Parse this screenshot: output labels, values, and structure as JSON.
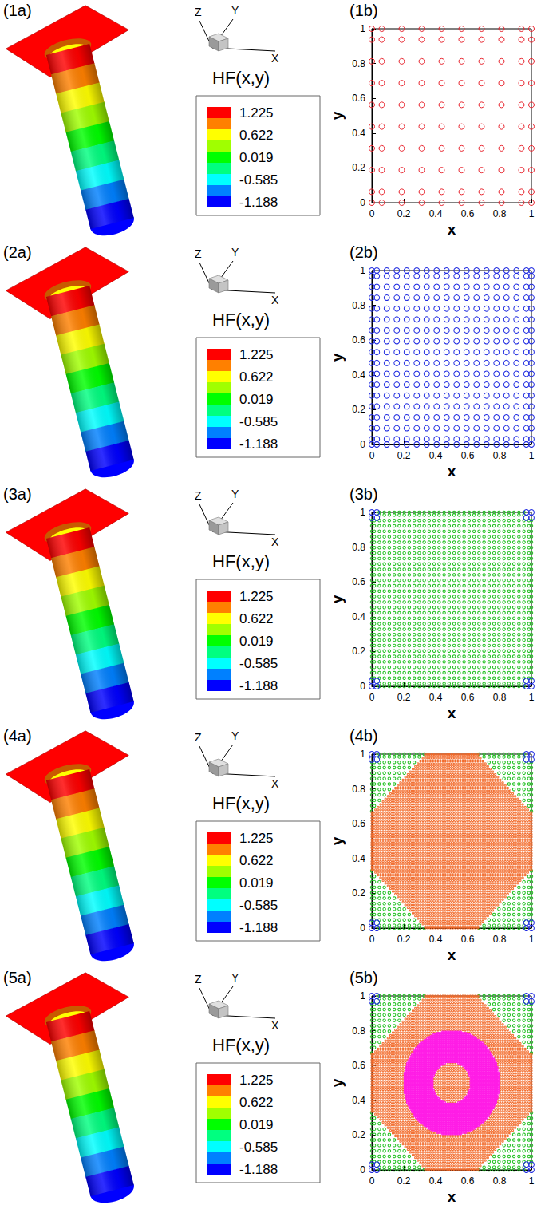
{
  "chart_data": [
    {
      "type": "scatter",
      "panel_label": "(1b)",
      "xlabel": "x",
      "ylabel": "y",
      "xlim": [
        0,
        1
      ],
      "ylim": [
        0,
        1
      ],
      "xticks": [
        0,
        0.2,
        0.4,
        0.6,
        0.8,
        1
      ],
      "yticks": [
        0,
        0.2,
        0.4,
        0.6,
        0.8,
        1
      ],
      "grid": false,
      "series": [
        {
          "color": "#e8202a",
          "marker": "circle",
          "cells_per_side": 8,
          "region": {
            "shape": "square"
          }
        }
      ]
    },
    {
      "type": "scatter",
      "panel_label": "(2b)",
      "xlabel": "x",
      "ylabel": "y",
      "xlim": [
        0,
        1
      ],
      "ylim": [
        0,
        1
      ],
      "xticks": [
        0,
        0.2,
        0.4,
        0.6,
        0.8,
        1
      ],
      "yticks": [
        0,
        0.2,
        0.4,
        0.6,
        0.8,
        1
      ],
      "grid": false,
      "series": [
        {
          "color": "#1f2be0",
          "marker": "circle",
          "cells_per_side": 16,
          "region": {
            "shape": "square"
          }
        }
      ]
    },
    {
      "type": "scatter",
      "panel_label": "(3b)",
      "xlabel": "x",
      "ylabel": "y",
      "xlim": [
        0,
        1
      ],
      "ylim": [
        0,
        1
      ],
      "xticks": [
        0,
        0.2,
        0.4,
        0.6,
        0.8,
        1
      ],
      "yticks": [
        0,
        0.2,
        0.4,
        0.6,
        0.8,
        1
      ],
      "grid": false,
      "series": [
        {
          "color": "#22c022",
          "marker": "circle",
          "cells_per_side": 32,
          "region": {
            "shape": "square"
          }
        },
        {
          "color": "#1f2be0",
          "marker": "circle",
          "cells_per_side": 16,
          "region": {
            "shape": "corners",
            "size": 0.04
          }
        }
      ]
    },
    {
      "type": "scatter",
      "panel_label": "(4b)",
      "xlabel": "x",
      "ylabel": "y",
      "xlim": [
        0,
        1
      ],
      "ylim": [
        0,
        1
      ],
      "xticks": [
        0,
        0.2,
        0.4,
        0.6,
        0.8,
        1
      ],
      "yticks": [
        0,
        0.2,
        0.4,
        0.6,
        0.8,
        1
      ],
      "grid": false,
      "series": [
        {
          "color": "#22c022",
          "marker": "circle",
          "cells_per_side": 32,
          "region": {
            "shape": "square"
          }
        },
        {
          "color": "#1f2be0",
          "marker": "circle",
          "cells_per_side": 16,
          "region": {
            "shape": "corners",
            "size": 0.04
          }
        },
        {
          "color": "#f26a2a",
          "marker": "square",
          "cells_per_side": 64,
          "region": {
            "shape": "polygon",
            "vertices": [
              [
                0.33,
                0
              ],
              [
                0.67,
                0
              ],
              [
                1,
                0.33
              ],
              [
                1,
                0.67
              ],
              [
                0.67,
                1
              ],
              [
                0.33,
                1
              ],
              [
                0,
                0.67
              ],
              [
                0,
                0.33
              ]
            ]
          }
        }
      ]
    },
    {
      "type": "scatter",
      "panel_label": "(5b)",
      "xlabel": "x",
      "ylabel": "y",
      "xlim": [
        0,
        1
      ],
      "ylim": [
        0,
        1
      ],
      "xticks": [
        0,
        0.2,
        0.4,
        0.6,
        0.8,
        1
      ],
      "yticks": [
        0,
        0.2,
        0.4,
        0.6,
        0.8,
        1
      ],
      "grid": false,
      "series": [
        {
          "color": "#22c022",
          "marker": "circle",
          "cells_per_side": 32,
          "region": {
            "shape": "square"
          }
        },
        {
          "color": "#1f2be0",
          "marker": "circle",
          "cells_per_side": 16,
          "region": {
            "shape": "corners",
            "size": 0.04
          }
        },
        {
          "color": "#f26a2a",
          "marker": "square",
          "cells_per_side": 64,
          "region": {
            "shape": "polygon",
            "vertices": [
              [
                0.33,
                0
              ],
              [
                0.67,
                0
              ],
              [
                1,
                0.33
              ],
              [
                1,
                0.67
              ],
              [
                0.67,
                1
              ],
              [
                0.33,
                1
              ],
              [
                0,
                0.67
              ],
              [
                0,
                0.33
              ]
            ]
          }
        },
        {
          "color": "#ff1ee6",
          "marker": "square",
          "cells_per_side": 128,
          "region": {
            "shape": "annulus",
            "center": [
              0.5,
              0.5
            ],
            "inner_radius": 0.12,
            "outer_radius": 0.3
          }
        }
      ]
    }
  ],
  "surface_panels": [
    {
      "panel_label": "(1a)",
      "axis_labels": [
        "Z",
        "Y",
        "X"
      ],
      "colorbar": {
        "title": "HF(x,y)",
        "ticks": [
          1.225,
          0.622,
          0.019,
          -0.585,
          -1.188
        ],
        "colors": [
          "#ff0000",
          "#ff8000",
          "#ffff00",
          "#a0ff00",
          "#00ff00",
          "#00ff80",
          "#00ffff",
          "#0080ff",
          "#0000ff"
        ]
      }
    },
    {
      "panel_label": "(2a)",
      "axis_labels": [
        "Z",
        "Y",
        "X"
      ],
      "colorbar": {
        "title": "HF(x,y)",
        "ticks": [
          1.225,
          0.622,
          0.019,
          -0.585,
          -1.188
        ],
        "colors": [
          "#ff0000",
          "#ff8000",
          "#ffff00",
          "#a0ff00",
          "#00ff00",
          "#00ff80",
          "#00ffff",
          "#0080ff",
          "#0000ff"
        ]
      }
    },
    {
      "panel_label": "(3a)",
      "axis_labels": [
        "Z",
        "Y",
        "X"
      ],
      "colorbar": {
        "title": "HF(x,y)",
        "ticks": [
          1.225,
          0.622,
          0.019,
          -0.585,
          -1.188
        ],
        "colors": [
          "#ff0000",
          "#ff8000",
          "#ffff00",
          "#a0ff00",
          "#00ff00",
          "#00ff80",
          "#00ffff",
          "#0080ff",
          "#0000ff"
        ]
      }
    },
    {
      "panel_label": "(4a)",
      "axis_labels": [
        "Z",
        "Y",
        "X"
      ],
      "colorbar": {
        "title": "HF(x,y)",
        "ticks": [
          1.225,
          0.622,
          0.019,
          -0.585,
          -1.188
        ],
        "colors": [
          "#ff0000",
          "#ff8000",
          "#ffff00",
          "#a0ff00",
          "#00ff00",
          "#00ff80",
          "#00ffff",
          "#0080ff",
          "#0000ff"
        ]
      }
    },
    {
      "panel_label": "(5a)",
      "axis_labels": [
        "Z",
        "Y",
        "X"
      ],
      "colorbar": {
        "title": "HF(x,y)",
        "ticks": [
          1.225,
          0.622,
          0.019,
          -0.585,
          -1.188
        ],
        "colors": [
          "#ff0000",
          "#ff8000",
          "#ffff00",
          "#a0ff00",
          "#00ff00",
          "#00ff80",
          "#00ffff",
          "#0080ff",
          "#0000ff"
        ]
      }
    }
  ]
}
